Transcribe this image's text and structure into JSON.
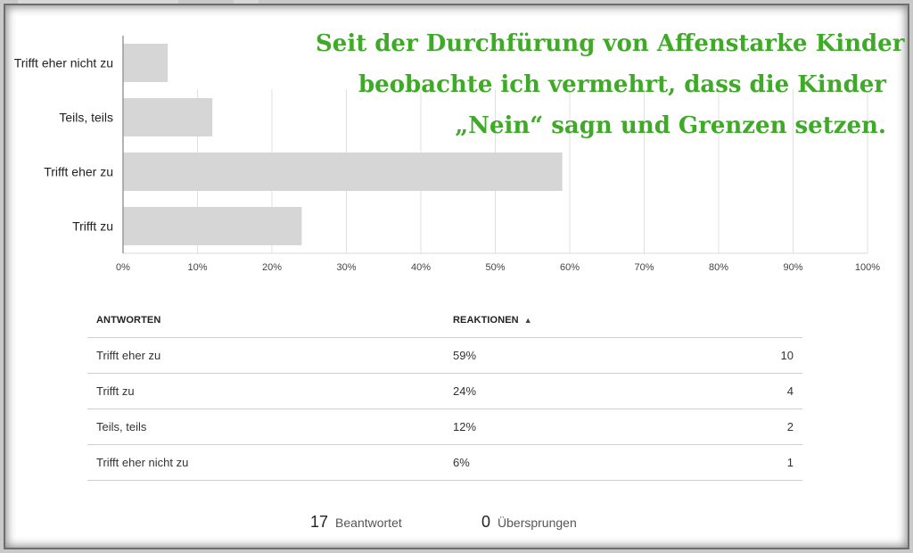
{
  "headline": {
    "lines": [
      "Seit der Durchfürung von Affenstarke Kinder",
      "beobachte ich vermehrt, dass die Kinder",
      "„Nein“ sagn und Grenzen setzen."
    ],
    "color": "#3faa27"
  },
  "chart_data": {
    "type": "bar",
    "orientation": "horizontal",
    "categories": [
      "Trifft eher nicht zu",
      "Teils, teils",
      "Trifft eher zu",
      "Trifft zu"
    ],
    "values": [
      6,
      12,
      59,
      24
    ],
    "xlim": [
      0,
      100
    ],
    "xticks": [
      "0%",
      "10%",
      "20%",
      "30%",
      "40%",
      "50%",
      "60%",
      "70%",
      "80%",
      "90%",
      "100%"
    ],
    "bar_color": "#d6d6d6",
    "grid": "vertical"
  },
  "table": {
    "headers": {
      "answers": "ANTWORTEN",
      "reactions": "REAKTIONEN"
    },
    "sort_icon": "sort-updown-icon",
    "rows": [
      {
        "answer": "Trifft eher zu",
        "percent": "59%",
        "count": "10"
      },
      {
        "answer": "Trifft zu",
        "percent": "24%",
        "count": "4"
      },
      {
        "answer": "Teils, teils",
        "percent": "12%",
        "count": "2"
      },
      {
        "answer": "Trifft eher nicht zu",
        "percent": "6%",
        "count": "1"
      }
    ]
  },
  "footer": {
    "answered_count": "17",
    "answered_label": "Beantwortet",
    "skipped_count": "0",
    "skipped_label": "Übersprungen"
  }
}
